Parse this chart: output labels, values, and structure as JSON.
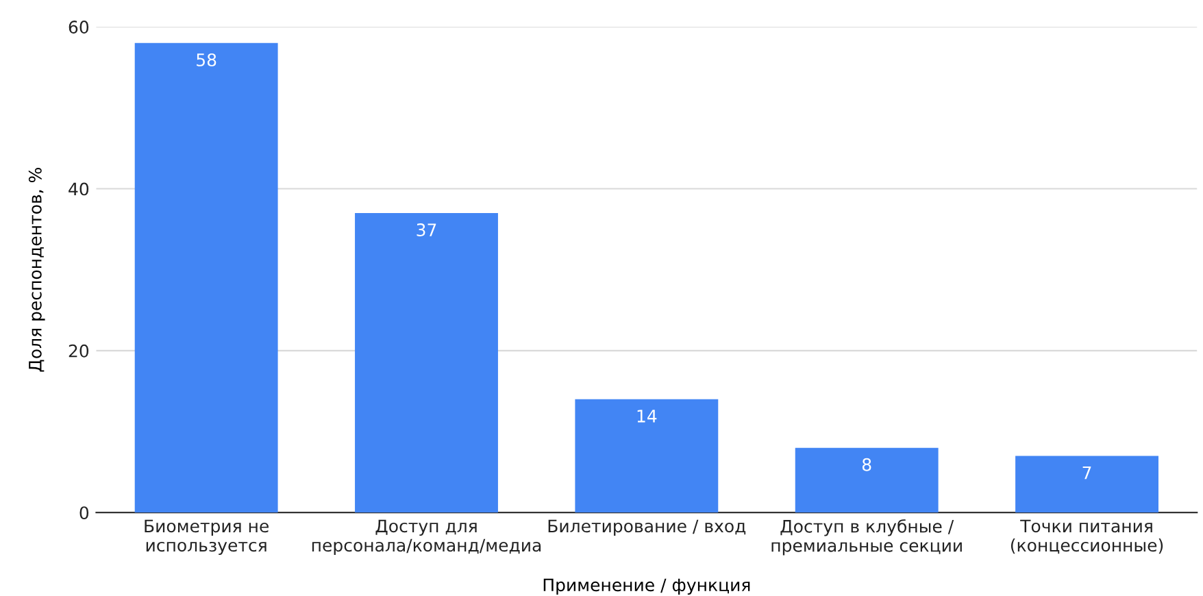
{
  "chart_data": {
    "type": "bar",
    "categories": [
      "Биометрия не\nиспользуется",
      "Доступ для\nперсонала/команд/медиа",
      "Билетирование / вход",
      "Доступ в клубные /\nпремиальные секции",
      "Точки питания\n(концессионные)"
    ],
    "values": [
      58,
      37,
      14,
      8,
      7
    ],
    "color": "#4285f4",
    "xlabel": "Применение / функция",
    "ylabel": "Доля респондентов, %",
    "ylim": [
      0,
      60
    ],
    "yticks": [
      0,
      20,
      40,
      60
    ],
    "grid": "y",
    "data_labels": true
  }
}
